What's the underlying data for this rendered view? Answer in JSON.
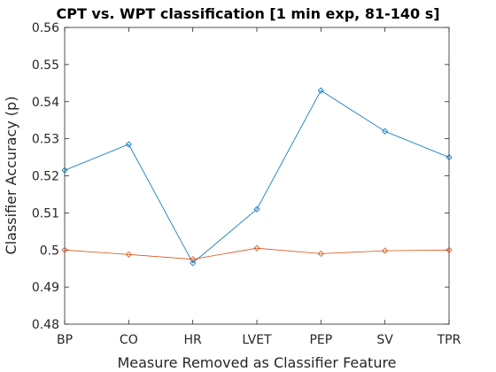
{
  "chart_data": {
    "type": "line",
    "title": "CPT vs. WPT classification [1 min exp, 81-140 s]",
    "xlabel": "Measure Removed as Classifier Feature",
    "ylabel": "Classifier Accuracy (p)",
    "categories": [
      "BP",
      "CO",
      "HR",
      "LVET",
      "PEP",
      "SV",
      "TPR"
    ],
    "ylim": [
      0.48,
      0.56
    ],
    "yticks": [
      "0.48",
      "0.49",
      "0.5",
      "0.51",
      "0.52",
      "0.53",
      "0.54",
      "0.55",
      "0.56"
    ],
    "grid": false,
    "legend": "none",
    "marker": "diamond",
    "series": [
      {
        "color": "#0072BD",
        "values": [
          0.5215,
          0.5285,
          0.4965,
          0.511,
          0.543,
          0.532,
          0.525
        ]
      },
      {
        "color": "#D95319",
        "values": [
          0.5,
          0.4988,
          0.4975,
          0.5005,
          0.499,
          0.4998,
          0.5
        ]
      }
    ]
  }
}
